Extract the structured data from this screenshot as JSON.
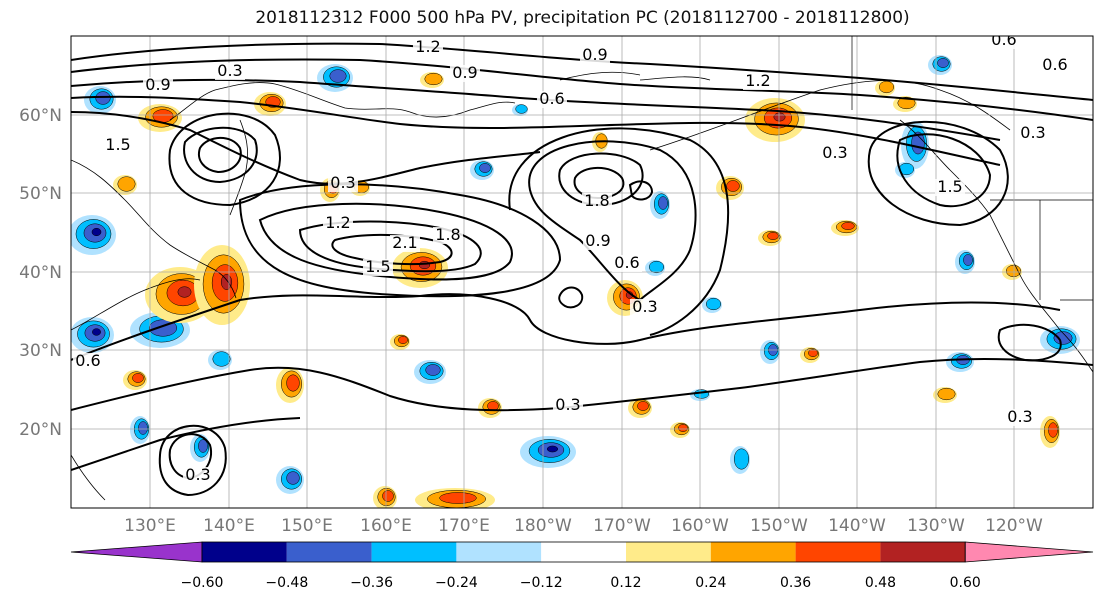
{
  "title": "2018112312 F000 500 hPa PV, precipitation PC (2018112700 - 2018112800)",
  "lat_labels": [
    "60°N",
    "50°N",
    "40°N",
    "30°N",
    "20°N"
  ],
  "lon_labels": [
    "130°E",
    "140°E",
    "150°E",
    "160°E",
    "170°E",
    "180°W",
    "170°W",
    "160°W",
    "150°W",
    "140°W",
    "130°W",
    "120°W"
  ],
  "contour_labels": [
    "0.3",
    "0.9",
    "1.2",
    "0.9",
    "0.6",
    "0.9",
    "1.2",
    "0.6",
    "0.3",
    "1.5",
    "0.3",
    "1.2",
    "2.1",
    "1.8",
    "1.5",
    "1.8",
    "0.9",
    "0.6",
    "0.3",
    "0.6",
    "1.5",
    "0.3",
    "0.3",
    "0.6",
    "0.3",
    "0.3"
  ],
  "colorbar": {
    "tick_labels": [
      "−0.60",
      "−0.48",
      "−0.36",
      "−0.24",
      "−0.12",
      "0.12",
      "0.24",
      "0.36",
      "0.48",
      "0.60"
    ],
    "colors": [
      "#9933cc",
      "#00008b",
      "#3a5fcd",
      "#00bfff",
      "#b0e2ff",
      "#ffffff",
      "#ffeb8a",
      "#ffa500",
      "#ff4500",
      "#b22222",
      "#ff88b0"
    ]
  },
  "palette": {
    "neg_lt": "#b0e2ff",
    "neg_1": "#00bfff",
    "neg_2": "#3a5fcd",
    "neg_3": "#00008b",
    "pos_lt": "#ffeb8a",
    "pos_1": "#ffa500",
    "pos_2": "#ff4500",
    "pos_3": "#b22222"
  }
}
